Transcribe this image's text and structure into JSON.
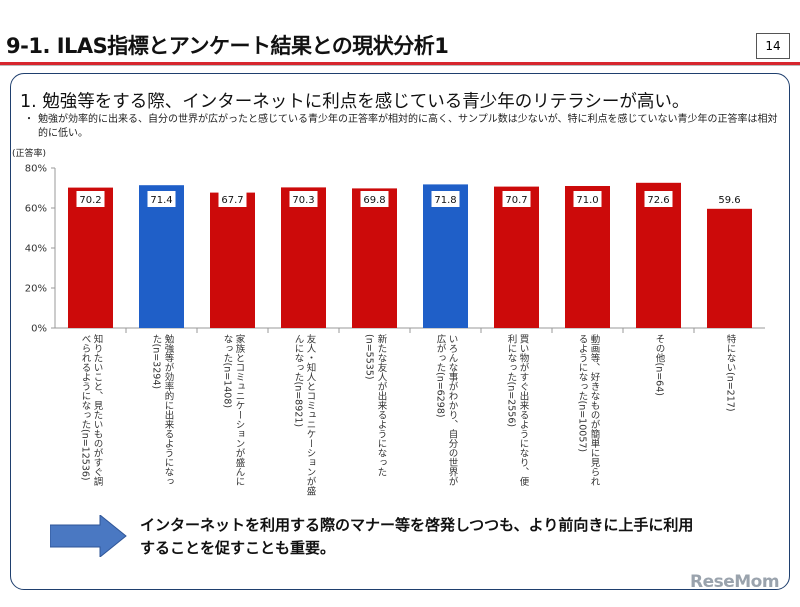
{
  "slide": {
    "title": "9-1. ILAS指標とアンケート結果との現状分析1",
    "page_number": "14",
    "heading": "1. 勉強等をする際、インターネットに利点を感じている青少年のリテラシーが高い。",
    "bullet": "勉強が効率的に出来る、自分の世界が広がったと感じている青少年の正答率が相対的に高く、サンプル数は少ないが、特に利点を感じていない青少年の正答率は相対的に低い。",
    "bullet_marker": "・",
    "conclusion_lines": [
      "インターネットを利用する際のマナー等を啓発しつつも、より前向きに上手に利用",
      "することを促すことも重要。"
    ],
    "logo": "ReseMom",
    "arrow_icon": "right-arrow",
    "arrow_color": "#4a78c2"
  },
  "chart_data": {
    "type": "bar",
    "ylabel": "(正答率)",
    "ylim": [
      0,
      80
    ],
    "yticks": [
      "0%",
      "20%",
      "40%",
      "60%",
      "80%"
    ],
    "ytick_values": [
      0,
      20,
      40,
      60,
      80
    ],
    "grid": false,
    "categories": [
      [
        "知りたいこと、見たいものがすぐ調",
        "べられるようになった(n=12536)"
      ],
      [
        "勉強等が効率的に出来るようになっ",
        "た(n=3294)"
      ],
      [
        "家族とコミュニケーションが盛んに",
        "なった(n=1408)"
      ],
      [
        "友人・知人とコミュニケーションが盛",
        "んになった(n=8921)"
      ],
      [
        "新たな友人が出来るようになった",
        "(n=5535)"
      ],
      [
        "いろんな事がわかり、自分の世界が",
        "広がった(n=6298)"
      ],
      [
        "買い物がすぐ出来るようになり、便",
        "利になった(n=2556)"
      ],
      [
        "動画等、好きなものが簡単に見られ",
        "るようになった(n=10057)"
      ],
      [
        "その他(n=64)"
      ],
      [
        "特にない(n=217)"
      ]
    ],
    "values": [
      70.2,
      71.4,
      67.7,
      70.3,
      69.8,
      71.8,
      70.7,
      71.0,
      72.6,
      59.6
    ],
    "value_labels": [
      "70.2",
      "71.4",
      "67.7",
      "70.3",
      "69.8",
      "71.8",
      "70.7",
      "71.0",
      "72.6",
      "59.6"
    ],
    "highlighted": [
      false,
      true,
      false,
      false,
      false,
      true,
      false,
      false,
      false,
      false
    ],
    "colors": {
      "default": "#cc0a0a",
      "highlight": "#1f5fc8"
    }
  }
}
